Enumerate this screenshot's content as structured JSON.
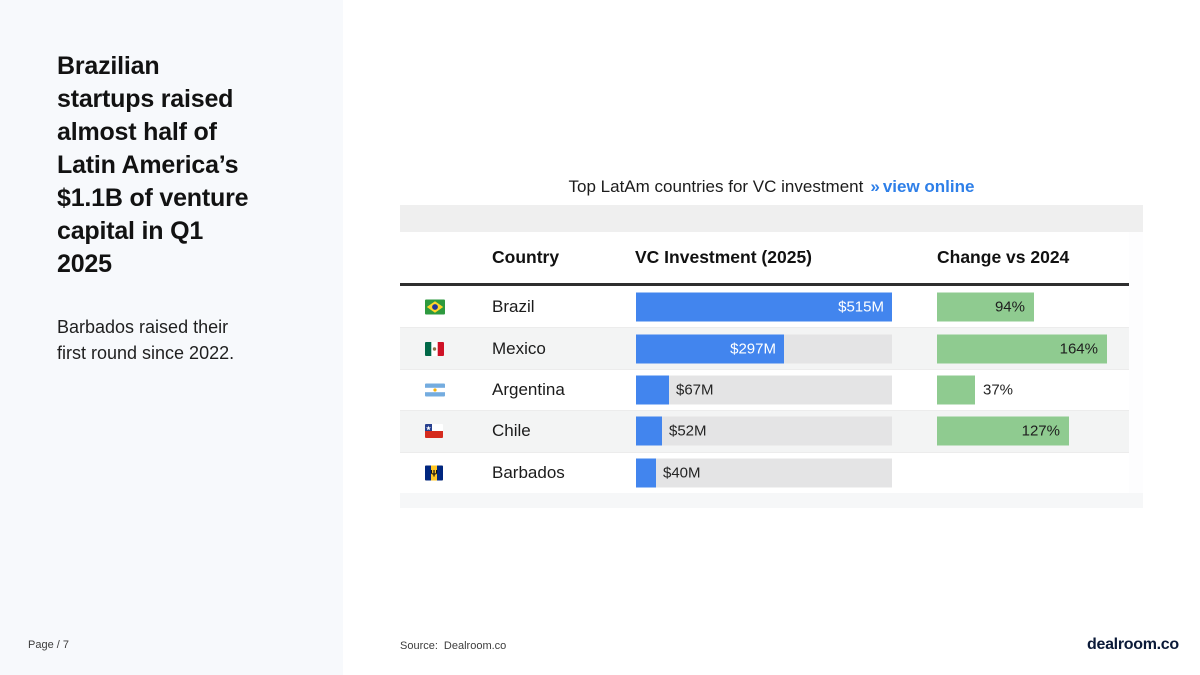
{
  "colors": {
    "bar_blue": "#4285ee",
    "link_blue": "#2e7fe8",
    "bar_green": "#8fcb90",
    "track_gray": "#e4e4e5",
    "logo_navy": "#0b1a38"
  },
  "sidebar": {
    "headline": "Brazilian\nstartups raised\nalmost half of\nLatin America’s\n$1.1B of venture\ncapital in Q1\n2025",
    "subtext": "Barbados raised their\nfirst round since 2022.",
    "page_label": "Page / 7"
  },
  "panel": {
    "title": "Top LatAm countries for VC investment",
    "link_marker": "»",
    "link_text": "view online",
    "columns": {
      "country": "Country",
      "vc": "VC Investment (2025)",
      "change": "Change vs 2024"
    },
    "rows": [
      {
        "flag": "brazil-flag",
        "country": "Brazil",
        "vc_musd": 515,
        "vc_label": "$515M",
        "change_pct": 94,
        "change_label": "94%"
      },
      {
        "flag": "mexico-flag",
        "country": "Mexico",
        "vc_musd": 297,
        "vc_label": "$297M",
        "change_pct": 164,
        "change_label": "164%"
      },
      {
        "flag": "argentina-flag",
        "country": "Argentina",
        "vc_musd": 67,
        "vc_label": "$67M",
        "change_pct": 37,
        "change_label": "37%"
      },
      {
        "flag": "chile-flag",
        "country": "Chile",
        "vc_musd": 52,
        "vc_label": "$52M",
        "change_pct": 127,
        "change_label": "127%"
      },
      {
        "flag": "barbados-flag",
        "country": "Barbados",
        "vc_musd": 40,
        "vc_label": "$40M",
        "change_pct": null,
        "change_label": ""
      }
    ]
  },
  "footer": {
    "source_label": "Source:",
    "source_value": "Dealroom.co",
    "logo_text": "dealroom.co"
  },
  "chart_data": {
    "type": "bar",
    "title": "Top LatAm countries for VC investment",
    "categories": [
      "Brazil",
      "Mexico",
      "Argentina",
      "Chile",
      "Barbados"
    ],
    "series": [
      {
        "name": "VC Investment (2025), $M",
        "values": [
          515,
          297,
          67,
          52,
          40
        ],
        "color": "#4285ee"
      },
      {
        "name": "Change vs 2024, %",
        "values": [
          94,
          164,
          37,
          127,
          null
        ],
        "color": "#8fcb90"
      }
    ],
    "layout": "horizontal bars embedded in table rows; VC bars drawn on gray track scaled to max 515; change bars scaled to max 164; no axes or gridlines; value labels on bars"
  }
}
